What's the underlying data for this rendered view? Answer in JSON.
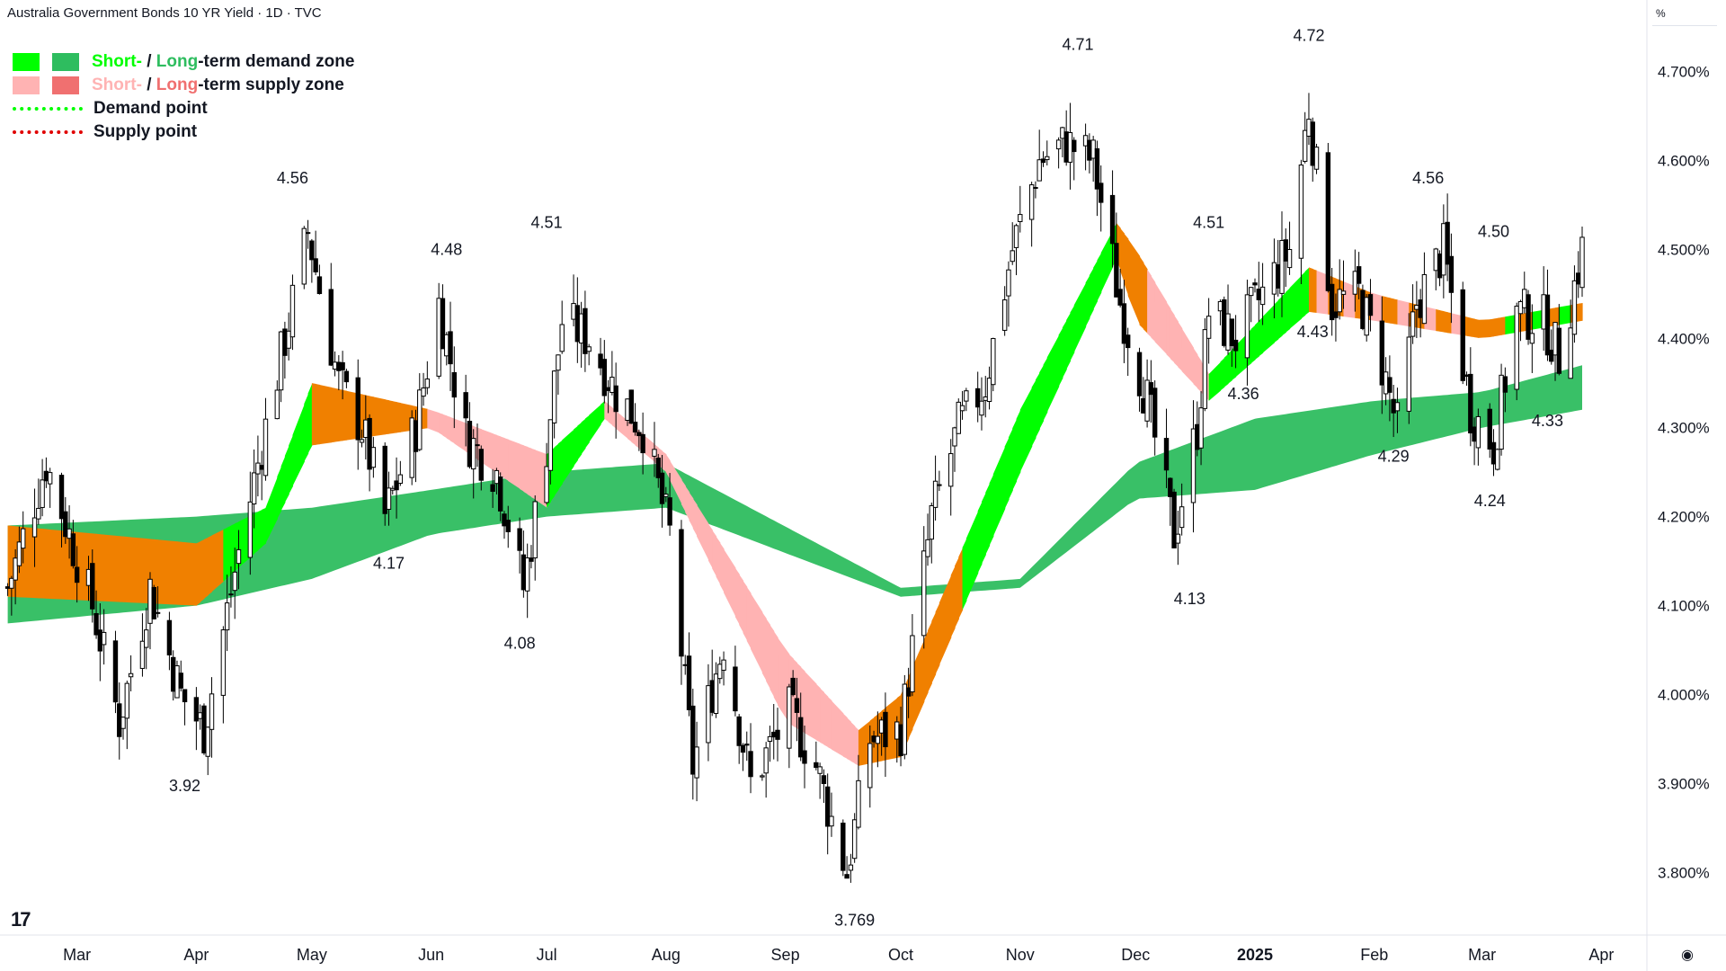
{
  "header": {
    "title": "Australia Government Bonds 10 YR Yield · 1D · TVC",
    "unit": "%"
  },
  "legend": {
    "demand_short": "Short-",
    "demand_sep": " / ",
    "demand_long": "Long",
    "demand_rest": "-term demand zone",
    "supply_short": "Short-",
    "supply_sep": " / ",
    "supply_long": "Long",
    "supply_rest": "-term supply zone",
    "demand_point": "Demand point",
    "supply_point": "Supply point"
  },
  "colors": {
    "demand_short": "#00ff00",
    "demand_long": "#2ebd5f",
    "supply_short": "#ffb3b3",
    "supply_long": "#f07070",
    "neutral_band": "#f08000",
    "candle": "#000000",
    "demand_point": "#00ff00",
    "supply_point": "#e00000"
  },
  "footer": {
    "logo": "17",
    "settings_icon": "settings-icon"
  },
  "chart_data": {
    "type": "candlestick",
    "title": "Australia Government Bonds 10 YR Yield · 1D · TVC",
    "ylabel": "%",
    "ylim": [
      3.73,
      4.75
    ],
    "grid": false,
    "legend_position": "top-left",
    "y_ticks": [
      "4.700%",
      "4.600%",
      "4.500%",
      "4.400%",
      "4.300%",
      "4.200%",
      "4.100%",
      "4.000%",
      "3.900%",
      "3.800%"
    ],
    "y_tick_values": [
      4.7,
      4.6,
      4.5,
      4.4,
      4.3,
      4.2,
      4.1,
      4.0,
      3.9,
      3.8
    ],
    "x_ticks": [
      "Mar",
      "Apr",
      "May",
      "Jun",
      "Jul",
      "Aug",
      "Sep",
      "Oct",
      "Nov",
      "Dec",
      "2025",
      "Feb",
      "Mar",
      "Apr"
    ],
    "x_tick_dates": [
      "2024-03-01",
      "2024-04-01",
      "2024-05-01",
      "2024-06-01",
      "2024-07-01",
      "2024-08-01",
      "2024-09-01",
      "2024-10-01",
      "2024-11-01",
      "2024-12-01",
      "2025-01-01",
      "2025-02-01",
      "2025-03-01",
      "2025-04-01"
    ],
    "x_range": [
      "2024-02-10",
      "2025-03-27"
    ],
    "close_path": [
      {
        "date": "2024-02-12",
        "value": 4.12
      },
      {
        "date": "2024-02-22",
        "value": 4.26
      },
      {
        "date": "2024-03-05",
        "value": 4.1
      },
      {
        "date": "2024-03-12",
        "value": 3.97
      },
      {
        "date": "2024-03-20",
        "value": 4.12
      },
      {
        "date": "2024-03-28",
        "value": 4.0
      },
      {
        "date": "2024-04-03",
        "value": 3.96
      },
      {
        "date": "2024-04-12",
        "value": 4.16
      },
      {
        "date": "2024-04-19",
        "value": 4.3
      },
      {
        "date": "2024-04-30",
        "value": 4.52
      },
      {
        "date": "2024-05-08",
        "value": 4.35
      },
      {
        "date": "2024-05-14",
        "value": 4.3
      },
      {
        "date": "2024-05-20",
        "value": 4.2
      },
      {
        "date": "2024-05-28",
        "value": 4.3
      },
      {
        "date": "2024-06-03",
        "value": 4.44
      },
      {
        "date": "2024-06-10",
        "value": 4.29
      },
      {
        "date": "2024-06-18",
        "value": 4.25
      },
      {
        "date": "2024-06-25",
        "value": 4.12
      },
      {
        "date": "2024-07-01",
        "value": 4.28
      },
      {
        "date": "2024-07-05",
        "value": 4.42
      },
      {
        "date": "2024-07-12",
        "value": 4.4
      },
      {
        "date": "2024-07-19",
        "value": 4.34
      },
      {
        "date": "2024-07-26",
        "value": 4.3
      },
      {
        "date": "2024-08-02",
        "value": 4.18
      },
      {
        "date": "2024-08-05",
        "value": 4.05
      },
      {
        "date": "2024-08-08",
        "value": 3.92
      },
      {
        "date": "2024-08-16",
        "value": 4.06
      },
      {
        "date": "2024-08-23",
        "value": 3.9
      },
      {
        "date": "2024-09-02",
        "value": 3.98
      },
      {
        "date": "2024-09-09",
        "value": 3.92
      },
      {
        "date": "2024-09-17",
        "value": 3.8
      },
      {
        "date": "2024-09-23",
        "value": 3.95
      },
      {
        "date": "2024-10-01",
        "value": 3.96
      },
      {
        "date": "2024-10-09",
        "value": 4.2
      },
      {
        "date": "2024-10-16",
        "value": 4.3
      },
      {
        "date": "2024-10-23",
        "value": 4.35
      },
      {
        "date": "2024-10-30",
        "value": 4.5
      },
      {
        "date": "2024-11-06",
        "value": 4.6
      },
      {
        "date": "2024-11-13",
        "value": 4.62
      },
      {
        "date": "2024-11-20",
        "value": 4.6
      },
      {
        "date": "2024-11-27",
        "value": 4.44
      },
      {
        "date": "2024-12-04",
        "value": 4.33
      },
      {
        "date": "2024-12-11",
        "value": 4.18
      },
      {
        "date": "2024-12-17",
        "value": 4.3
      },
      {
        "date": "2024-12-20",
        "value": 4.43
      },
      {
        "date": "2024-12-27",
        "value": 4.4
      },
      {
        "date": "2025-01-03",
        "value": 4.45
      },
      {
        "date": "2025-01-10",
        "value": 4.5
      },
      {
        "date": "2025-01-15",
        "value": 4.66
      },
      {
        "date": "2025-01-21",
        "value": 4.44
      },
      {
        "date": "2025-01-28",
        "value": 4.45
      },
      {
        "date": "2025-02-03",
        "value": 4.37
      },
      {
        "date": "2025-02-07",
        "value": 4.3
      },
      {
        "date": "2025-02-12",
        "value": 4.44
      },
      {
        "date": "2025-02-19",
        "value": 4.5
      },
      {
        "date": "2025-02-26",
        "value": 4.32
      },
      {
        "date": "2025-03-04",
        "value": 4.28
      },
      {
        "date": "2025-03-10",
        "value": 4.43
      },
      {
        "date": "2025-03-17",
        "value": 4.42
      },
      {
        "date": "2025-03-21",
        "value": 4.38
      },
      {
        "date": "2025-03-27",
        "value": 4.5
      }
    ],
    "long_term_zone": [
      {
        "date": "2024-02-12",
        "low": 4.08,
        "high": 4.19
      },
      {
        "date": "2024-04-01",
        "low": 4.1,
        "high": 4.2
      },
      {
        "date": "2024-05-01",
        "low": 4.13,
        "high": 4.21
      },
      {
        "date": "2024-06-01",
        "low": 4.18,
        "high": 4.23
      },
      {
        "date": "2024-07-01",
        "low": 4.2,
        "high": 4.25
      },
      {
        "date": "2024-08-01",
        "low": 4.21,
        "high": 4.26
      },
      {
        "date": "2024-10-01",
        "low": 4.11,
        "high": 4.12
      },
      {
        "date": "2024-11-01",
        "low": 4.12,
        "high": 4.13
      },
      {
        "date": "2024-12-01",
        "low": 4.22,
        "high": 4.26
      },
      {
        "date": "2025-01-01",
        "low": 4.23,
        "high": 4.31
      },
      {
        "date": "2025-02-01",
        "low": 4.27,
        "high": 4.33
      },
      {
        "date": "2025-03-01",
        "low": 4.3,
        "high": 4.34
      },
      {
        "date": "2025-03-27",
        "low": 4.32,
        "high": 4.37
      }
    ],
    "short_term_zone": [
      {
        "date": "2024-02-12",
        "low": 4.11,
        "high": 4.19
      },
      {
        "date": "2024-04-01",
        "low": 4.1,
        "high": 4.17
      },
      {
        "date": "2024-04-19",
        "low": 4.17,
        "high": 4.21
      },
      {
        "date": "2024-05-01",
        "low": 4.28,
        "high": 4.35
      },
      {
        "date": "2024-06-01",
        "low": 4.3,
        "high": 4.32
      },
      {
        "date": "2024-07-01",
        "low": 4.21,
        "high": 4.27
      },
      {
        "date": "2024-07-16",
        "low": 4.31,
        "high": 4.33
      },
      {
        "date": "2024-08-01",
        "low": 4.25,
        "high": 4.27
      },
      {
        "date": "2024-09-01",
        "low": 3.97,
        "high": 4.05
      },
      {
        "date": "2024-09-20",
        "low": 3.92,
        "high": 3.96
      },
      {
        "date": "2024-10-01",
        "low": 3.93,
        "high": 4.0
      },
      {
        "date": "2024-11-01",
        "low": 4.25,
        "high": 4.32
      },
      {
        "date": "2024-11-26",
        "low": 4.49,
        "high": 4.53
      },
      {
        "date": "2024-12-01",
        "low": 4.42,
        "high": 4.5
      },
      {
        "date": "2024-12-20",
        "low": 4.33,
        "high": 4.36
      },
      {
        "date": "2025-01-15",
        "low": 4.43,
        "high": 4.48
      },
      {
        "date": "2025-02-01",
        "low": 4.42,
        "high": 4.45
      },
      {
        "date": "2025-03-01",
        "low": 4.4,
        "high": 4.42
      },
      {
        "date": "2025-03-27",
        "low": 4.42,
        "high": 4.44
      }
    ],
    "annotations": [
      {
        "date": "2024-03-29",
        "value": 3.92,
        "label": "3.92",
        "position": "below"
      },
      {
        "date": "2024-04-26",
        "value": 4.56,
        "label": "4.56",
        "position": "above"
      },
      {
        "date": "2024-05-21",
        "value": 4.17,
        "label": "4.17",
        "position": "below"
      },
      {
        "date": "2024-06-05",
        "value": 4.48,
        "label": "4.48",
        "position": "above"
      },
      {
        "date": "2024-06-24",
        "value": 4.08,
        "label": "4.08",
        "position": "below"
      },
      {
        "date": "2024-07-01",
        "value": 4.51,
        "label": "4.51",
        "position": "above"
      },
      {
        "date": "2024-09-19",
        "value": 3.769,
        "label": "3.769",
        "position": "below"
      },
      {
        "date": "2024-11-16",
        "value": 4.71,
        "label": "4.71",
        "position": "above"
      },
      {
        "date": "2024-12-15",
        "value": 4.13,
        "label": "4.13",
        "position": "below"
      },
      {
        "date": "2024-12-20",
        "value": 4.51,
        "label": "4.51",
        "position": "above"
      },
      {
        "date": "2024-12-29",
        "value": 4.36,
        "label": "4.36",
        "position": "below"
      },
      {
        "date": "2025-01-15",
        "value": 4.72,
        "label": "4.72",
        "position": "above"
      },
      {
        "date": "2025-01-16",
        "value": 4.43,
        "label": "4.43",
        "position": "below"
      },
      {
        "date": "2025-02-06",
        "value": 4.29,
        "label": "4.29",
        "position": "below"
      },
      {
        "date": "2025-02-15",
        "value": 4.56,
        "label": "4.56",
        "position": "above"
      },
      {
        "date": "2025-03-03",
        "value": 4.24,
        "label": "4.24",
        "position": "below"
      },
      {
        "date": "2025-03-04",
        "value": 4.5,
        "label": "4.50",
        "position": "above"
      },
      {
        "date": "2025-03-18",
        "value": 4.33,
        "label": "4.33",
        "position": "below"
      }
    ]
  }
}
